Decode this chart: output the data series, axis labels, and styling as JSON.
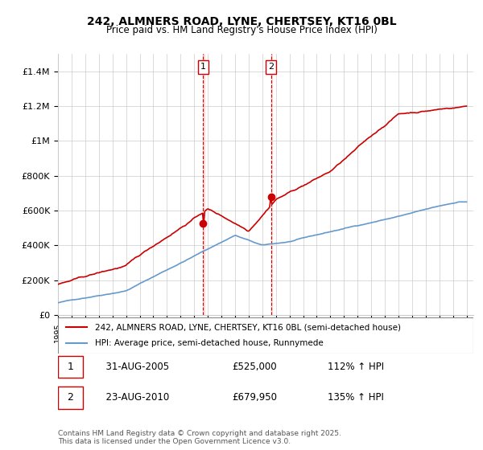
{
  "title_line1": "242, ALMNERS ROAD, LYNE, CHERTSEY, KT16 0BL",
  "title_line2": "Price paid vs. HM Land Registry's House Price Index (HPI)",
  "ylabel": "",
  "xlabel": "",
  "ylim": [
    0,
    1500000
  ],
  "yticks": [
    0,
    200000,
    400000,
    600000,
    800000,
    1000000,
    1200000,
    1400000
  ],
  "ytick_labels": [
    "£0",
    "£200K",
    "£400K",
    "£600K",
    "£800K",
    "£1M",
    "£1.2M",
    "£1.4M"
  ],
  "background_color": "#ffffff",
  "grid_color": "#cccccc",
  "sale1_year": 2005.66,
  "sale1_price": 525000,
  "sale1_label": "1",
  "sale1_date": "31-AUG-2005",
  "sale1_pct": "112%",
  "sale2_year": 2010.64,
  "sale2_price": 679950,
  "sale2_label": "2",
  "sale2_date": "23-AUG-2010",
  "sale2_pct": "135%",
  "legend_line1": "242, ALMNERS ROAD, LYNE, CHERTSEY, KT16 0BL (semi-detached house)",
  "legend_line2": "HPI: Average price, semi-detached house, Runnymede",
  "footer": "Contains HM Land Registry data © Crown copyright and database right 2025.\nThis data is licensed under the Open Government Licence v3.0.",
  "property_color": "#cc0000",
  "hpi_color": "#6699cc",
  "sale_marker_color": "#cc0000",
  "vline_color": "#cc0000",
  "vline_shade": "#ffcccc"
}
